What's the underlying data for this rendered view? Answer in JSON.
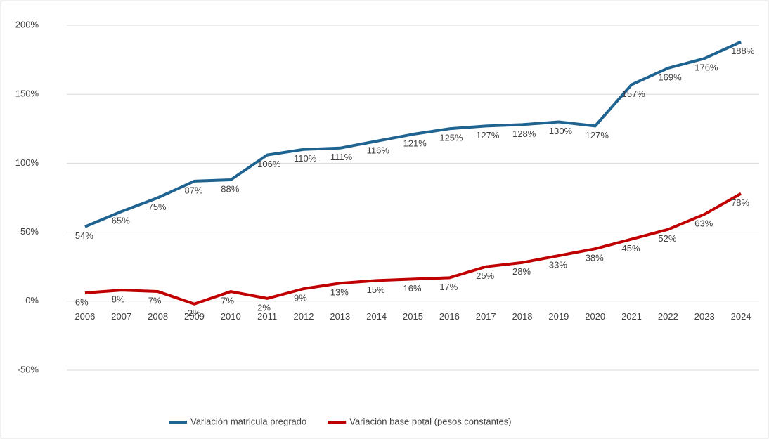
{
  "chart_data": {
    "type": "line",
    "categories": [
      "2006",
      "2007",
      "2008",
      "2009",
      "2010",
      "2011",
      "2012",
      "2013",
      "2014",
      "2015",
      "2016",
      "2017",
      "2018",
      "2019",
      "2020",
      "2021",
      "2022",
      "2023",
      "2024"
    ],
    "series": [
      {
        "name": "Variación matricula pregrado",
        "color": "#1f6391",
        "values": [
          54,
          65,
          75,
          87,
          88,
          106,
          110,
          111,
          116,
          121,
          125,
          127,
          128,
          130,
          127,
          157,
          169,
          176,
          188
        ],
        "value_labels": [
          "54%",
          "65%",
          "75%",
          "87%",
          "88%",
          "106%",
          "110%",
          "111%",
          "116%",
          "121%",
          "125%",
          "127%",
          "128%",
          "130%",
          "127%",
          "157%",
          "169%",
          "176%",
          "188%"
        ]
      },
      {
        "name": "Variación base pptal (pesos constantes)",
        "color": "#c00000",
        "values": [
          6,
          8,
          7,
          -2,
          7,
          2,
          9,
          13,
          15,
          16,
          17,
          25,
          28,
          33,
          38,
          45,
          52,
          63,
          78
        ],
        "value_labels": [
          "6%",
          "8%",
          "7%",
          "-2%",
          "7%",
          "2%",
          "9%",
          "13%",
          "15%",
          "16%",
          "17%",
          "25%",
          "28%",
          "33%",
          "38%",
          "45%",
          "52%",
          "63%",
          "78%"
        ]
      }
    ],
    "ylim": [
      -50,
      200
    ],
    "yticks": [
      {
        "value": -50,
        "label": "-50%"
      },
      {
        "value": 0,
        "label": "0%"
      },
      {
        "value": 50,
        "label": "50%"
      },
      {
        "value": 100,
        "label": "100%"
      },
      {
        "value": 150,
        "label": "150%"
      },
      {
        "value": 200,
        "label": "200%"
      }
    ],
    "grid": true,
    "legend": "bottom"
  }
}
